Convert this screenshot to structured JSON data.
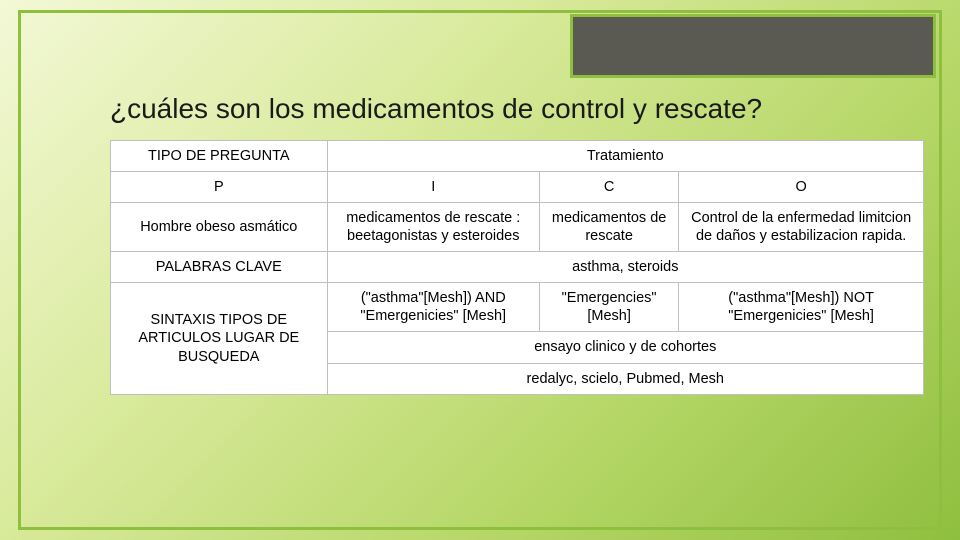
{
  "colors": {
    "frame_border": "#8fbf3f",
    "header_fill": "#5a5a53",
    "table_border": "#bfbfbf",
    "text": "#1a1a1a",
    "table_bg": "#ffffff"
  },
  "typography": {
    "title_fontsize": 28,
    "body_fontsize": 14.5,
    "font_family": "Arial"
  },
  "title": "¿cuáles son los medicamentos de control y rescate?",
  "table": {
    "type": "table",
    "rows": [
      {
        "left": "TIPO DE PREGUNTA",
        "right": "Tratamiento"
      },
      {
        "col1": "P",
        "col2": "I",
        "col3": "C",
        "col4": "O"
      },
      {
        "col1": "Hombre obeso asmático",
        "col2": "medicamentos de rescate : beetagonistas y esteroides",
        "col3": "medicamentos de rescate",
        "col4": "Control de la enfermedad limitcion de daños y estabilizacion rapida."
      },
      {
        "left": "PALABRAS CLAVE",
        "right": "asthma, steroids"
      },
      {
        "sintaxis_label": "SINTAXIS TIPOS DE ARTICULOS LUGAR DE BUSQUEDA",
        "c1": "(\"asthma\"[Mesh]) AND \"Emergenicies\" [Mesh]",
        "c2": "\"Emergencies\" [Mesh]",
        "c3": "(\"asthma\"[Mesh]) NOT \"Emergenicies\" [Mesh]",
        "r2": "ensayo clinico y de cohortes",
        "r3": "redalyc, scielo, Pubmed, Mesh"
      }
    ]
  }
}
